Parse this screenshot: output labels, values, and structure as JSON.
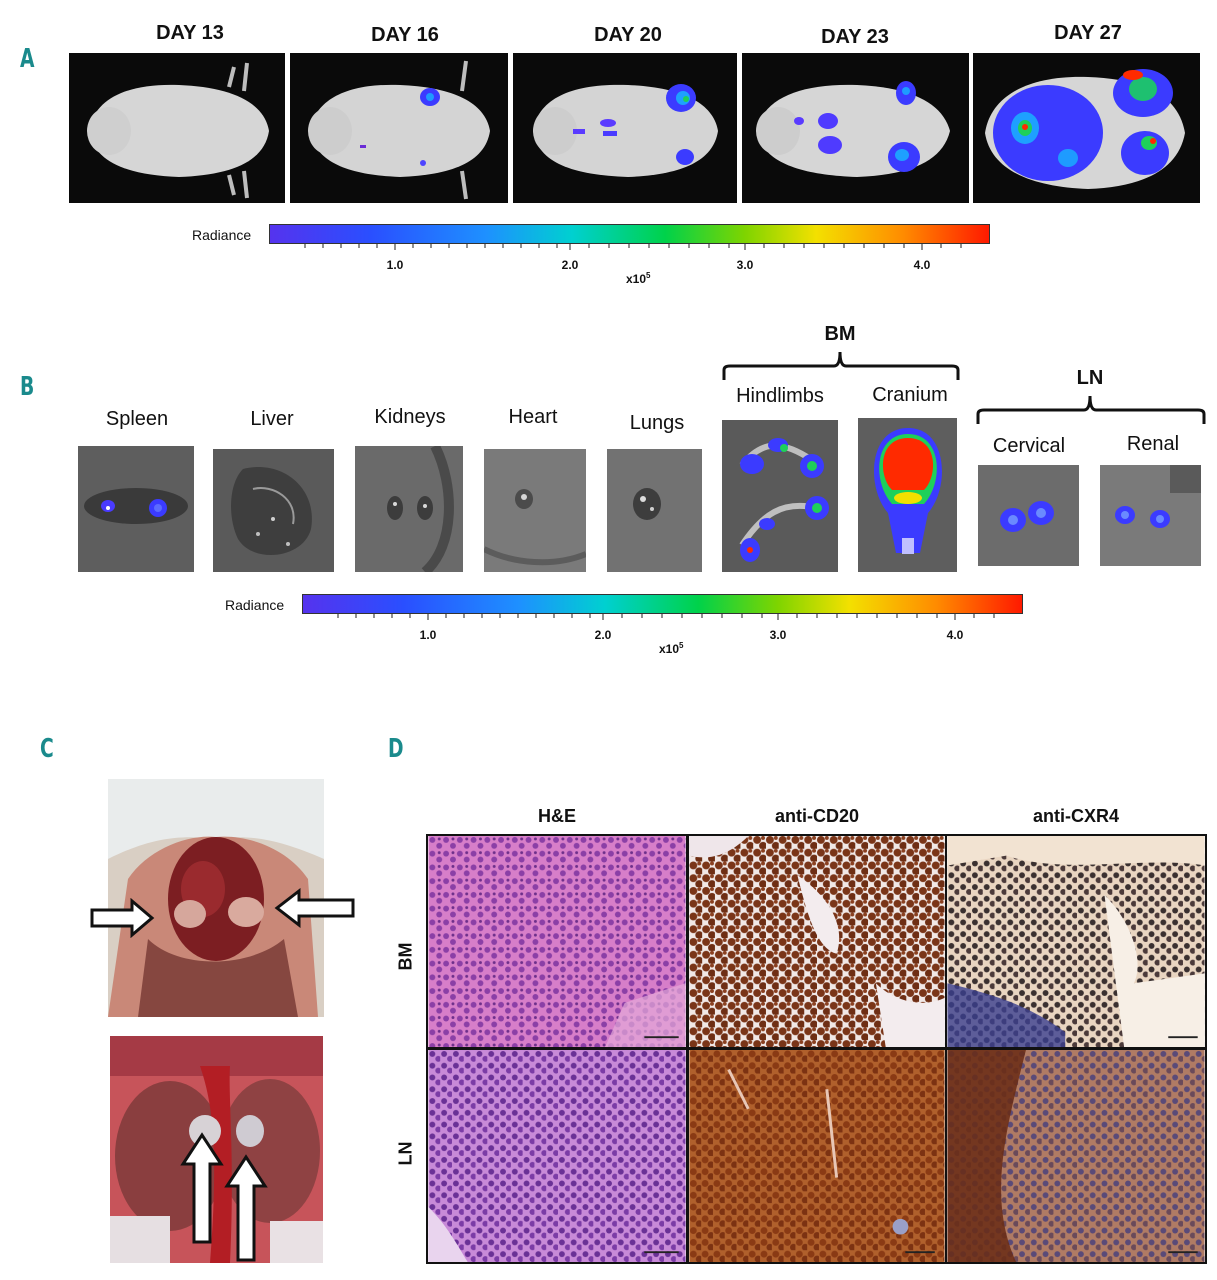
{
  "panels": {
    "a": "A",
    "b": "B",
    "c": "C",
    "d": "D"
  },
  "panelA": {
    "days": [
      "DAY 13",
      "DAY 16",
      "DAY 20",
      "DAY 23",
      "DAY 27"
    ],
    "colorbar": {
      "title": "Radiance",
      "ticks": [
        "1.0",
        "2.0",
        "3.0",
        "4.0"
      ],
      "unit_base": "x10",
      "unit_exp": "5"
    }
  },
  "panelB": {
    "organs": [
      "Spleen",
      "Liver",
      "Kidneys",
      "Heart",
      "Lungs",
      "Hindlimbs",
      "Cranium",
      "Cervical",
      "Renal"
    ],
    "groups": {
      "bm": "BM",
      "ln": "LN"
    },
    "colorbar": {
      "title": "Radiance",
      "ticks": [
        "1.0",
        "2.0",
        "3.0",
        "4.0"
      ],
      "unit_base": "x10",
      "unit_exp": "5"
    }
  },
  "panelD": {
    "columns": [
      "H&E",
      "anti-CD20",
      "anti-CXR4"
    ],
    "rows": [
      "BM",
      "LN"
    ]
  },
  "colors": {
    "panel_letter": "#1a8a8c",
    "he_stain": "#c24aa8",
    "dab_stain": "#7a3518",
    "hematoxylin": "#3a3f8f"
  }
}
